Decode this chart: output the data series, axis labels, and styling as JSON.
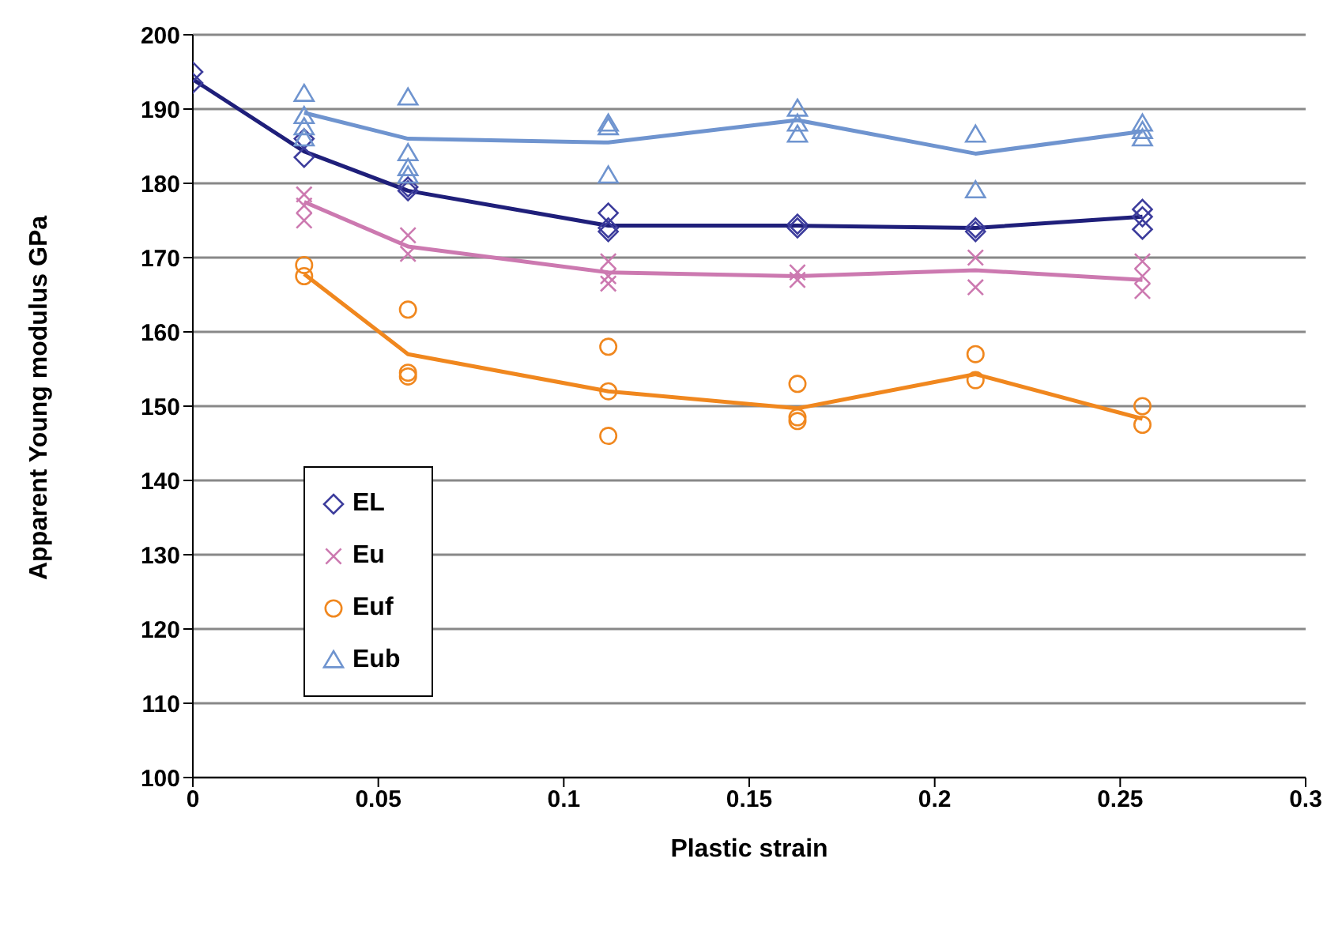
{
  "chart_data": {
    "type": "scatter",
    "xlabel": "Plastic strain",
    "ylabel": "Apparent Young modulus GPa",
    "xlim": [
      0,
      0.3
    ],
    "xticks": [
      0,
      0.05,
      0.1,
      0.15,
      0.2,
      0.25,
      0.3
    ],
    "ylim": [
      100,
      200
    ],
    "yticks": [
      100,
      110,
      120,
      130,
      140,
      150,
      160,
      170,
      180,
      190,
      200
    ],
    "grid": "y",
    "legend": "left",
    "series": [
      {
        "name": "EL",
        "marker": "diamond",
        "color": "#3c3c9c",
        "x": [
          0,
          0,
          0.03,
          0.03,
          0.058,
          0.058,
          0.112,
          0.112,
          0.112,
          0.163,
          0.163,
          0.211,
          0.211,
          0.256,
          0.256,
          0.256
        ],
        "values": [
          195,
          193.5,
          186,
          183.5,
          179.5,
          179,
          176,
          174,
          173.5,
          174.5,
          174,
          174,
          173.5,
          176.5,
          175.5,
          173.8
        ]
      },
      {
        "name": "Eu",
        "marker": "cross",
        "color": "#cc79b0",
        "x": [
          0.03,
          0.03,
          0.03,
          0.058,
          0.058,
          0.112,
          0.112,
          0.112,
          0.163,
          0.163,
          0.211,
          0.211,
          0.256,
          0.256,
          0.256
        ],
        "values": [
          178.5,
          177,
          175,
          173,
          170.5,
          169.5,
          167.5,
          166.5,
          168,
          167,
          170,
          166,
          169.5,
          167.5,
          165.5
        ]
      },
      {
        "name": "Euf",
        "marker": "circle",
        "color": "#f0871e",
        "x": [
          0.03,
          0.03,
          0.058,
          0.058,
          0.058,
          0.112,
          0.112,
          0.112,
          0.163,
          0.163,
          0.163,
          0.211,
          0.211,
          0.256,
          0.256
        ],
        "values": [
          169,
          167.5,
          163,
          154.5,
          154,
          158,
          152,
          146,
          153,
          148.5,
          148,
          157,
          153.5,
          150,
          147.5
        ]
      },
      {
        "name": "Eub",
        "marker": "triangle",
        "color": "#6f94cf",
        "x": [
          0.03,
          0.03,
          0.03,
          0.03,
          0.058,
          0.058,
          0.058,
          0.058,
          0.112,
          0.112,
          0.112,
          0.163,
          0.163,
          0.163,
          0.211,
          0.211,
          0.256,
          0.256,
          0.256
        ],
        "values": [
          192,
          189,
          187.5,
          186,
          191.5,
          184,
          182,
          181,
          188,
          187.5,
          181,
          190,
          188,
          186.5,
          186.5,
          179,
          188,
          187,
          186
        ]
      },
      {
        "type": "line",
        "marker": "none",
        "color": "#1f1f7a",
        "x": [
          0,
          0.03,
          0.058,
          0.112,
          0.163,
          0.211,
          0.256
        ],
        "values": [
          194,
          184.3,
          179,
          174.3,
          174.3,
          174,
          175.5
        ]
      },
      {
        "type": "line",
        "marker": "none",
        "color": "#cc79b0",
        "x": [
          0.03,
          0.058,
          0.112,
          0.163,
          0.211,
          0.256
        ],
        "values": [
          177.5,
          171.5,
          168,
          167.5,
          168.3,
          167
        ]
      },
      {
        "type": "line",
        "marker": "none",
        "color": "#f0871e",
        "x": [
          0.03,
          0.058,
          0.112,
          0.163,
          0.211,
          0.256
        ],
        "values": [
          167.8,
          157,
          152,
          149.7,
          154.3,
          148.3
        ]
      },
      {
        "type": "line",
        "marker": "none",
        "color": "#6f94cf",
        "x": [
          0.03,
          0.058,
          0.112,
          0.163,
          0.211,
          0.256
        ],
        "values": [
          189.5,
          186,
          185.5,
          188.5,
          184,
          187
        ]
      }
    ]
  }
}
